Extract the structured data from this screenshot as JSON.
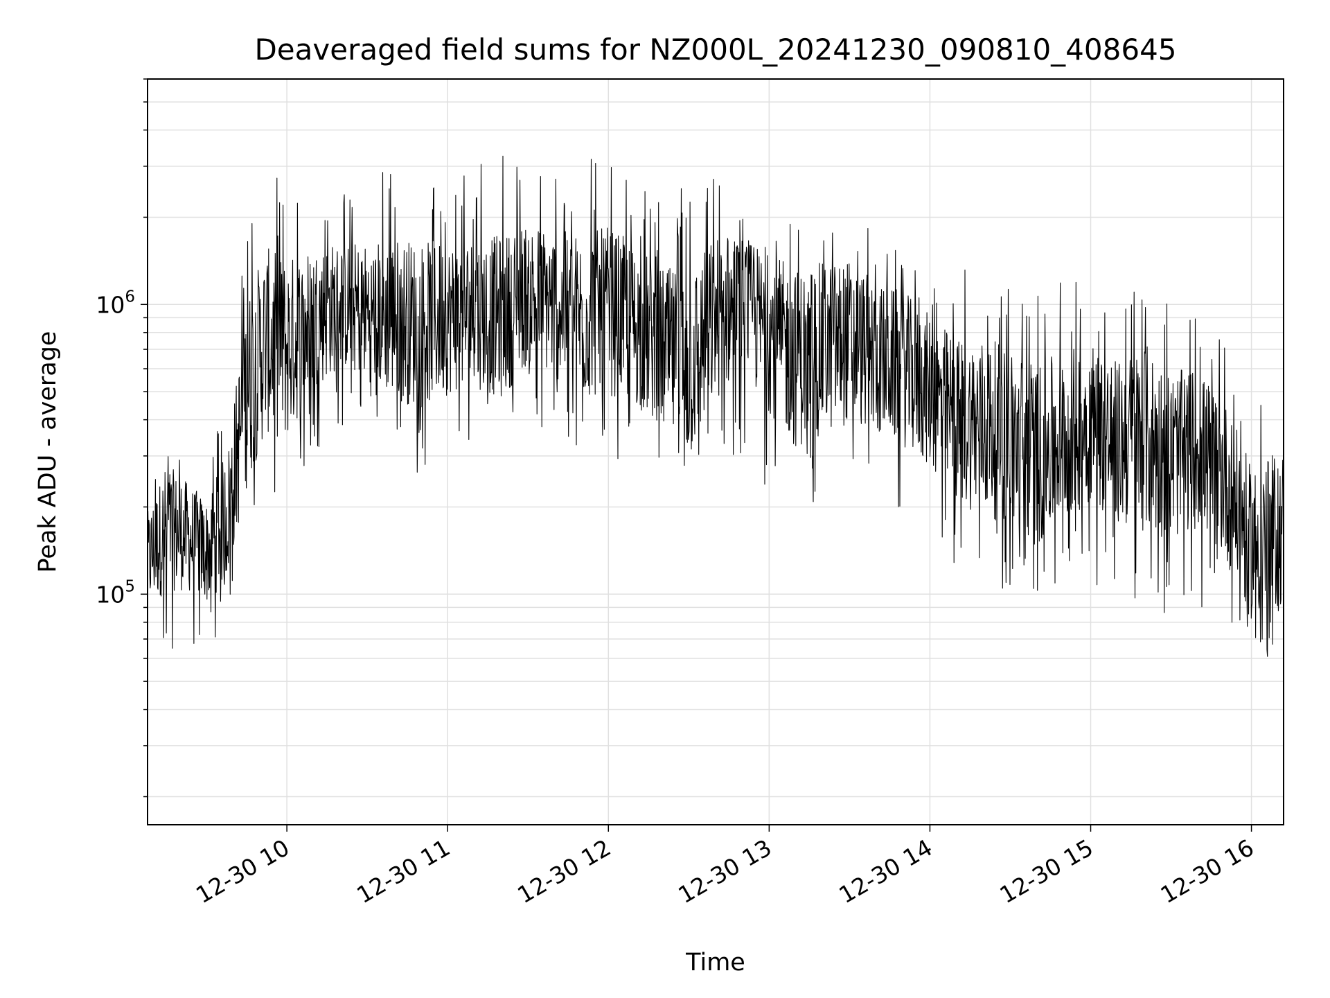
{
  "chart_data": {
    "type": "line",
    "title": "Deaveraged field sums for NZ000L_20241230_090810_408645",
    "xlabel": "Time",
    "ylabel": "Peak ADU - average",
    "x_start": "2024-12-30 09:08",
    "x_end": "2024-12-30 16:12",
    "xlim": [
      "2024-12-30 09:08",
      "2024-12-30 16:12"
    ],
    "xticks": [
      {
        "time": "2024-12-30 10:00",
        "label": "12-30 10"
      },
      {
        "time": "2024-12-30 11:00",
        "label": "12-30 11"
      },
      {
        "time": "2024-12-30 12:00",
        "label": "12-30 12"
      },
      {
        "time": "2024-12-30 13:00",
        "label": "12-30 13"
      },
      {
        "time": "2024-12-30 14:00",
        "label": "12-30 14"
      },
      {
        "time": "2024-12-30 15:00",
        "label": "12-30 15"
      },
      {
        "time": "2024-12-30 16:00",
        "label": "12-30 16"
      }
    ],
    "yscale": "log",
    "ylim": [
      16000,
      6000000
    ],
    "yticks": [
      {
        "value": 100000,
        "base": "10",
        "exp": "5"
      },
      {
        "value": 1000000,
        "base": "10",
        "exp": "6"
      }
    ],
    "grid": true,
    "line_color": "#000000",
    "grid_color": "#e0e0e0",
    "series": [
      {
        "x": [
          "09:08",
          "09:15",
          "09:22",
          "09:30",
          "09:38",
          "09:45",
          "09:52",
          "10:00",
          "10:10",
          "10:20",
          "10:30",
          "10:40",
          "10:50",
          "11:00",
          "11:10",
          "11:20",
          "11:30",
          "11:40",
          "11:50",
          "12:00",
          "12:10",
          "12:20",
          "12:30",
          "12:40",
          "12:50",
          "13:00",
          "13:10",
          "13:20",
          "13:30",
          "13:40",
          "13:50",
          "14:00",
          "14:10",
          "14:20",
          "14:30",
          "14:40",
          "14:50",
          "15:00",
          "15:10",
          "15:20",
          "15:30",
          "15:40",
          "15:50",
          "16:00",
          "16:12"
        ],
        "values": [
          130000,
          170000,
          160000,
          140000,
          190000,
          500000,
          750000,
          700000,
          900000,
          1000000,
          950000,
          900000,
          850000,
          900000,
          950000,
          900000,
          1100000,
          1000000,
          900000,
          950000,
          850000,
          700000,
          600000,
          900000,
          1000000,
          800000,
          650000,
          700000,
          750000,
          650000,
          600000,
          500000,
          400000,
          380000,
          350000,
          300000,
          350000,
          400000,
          330000,
          350000,
          300000,
          320000,
          250000,
          150000,
          170000
        ],
        "upper": [
          250000,
          350000,
          300000,
          250000,
          600000,
          2400000,
          3000000,
          2600000,
          2500000,
          2400000,
          2600000,
          3200000,
          2900000,
          2800000,
          3200000,
          3400000,
          3100000,
          3000000,
          3500000,
          3400000,
          2700000,
          2200000,
          3000000,
          2800000,
          2000000,
          2200000,
          2600000,
          2500000,
          2400000,
          1800000,
          1600000,
          1400000,
          1300000,
          1500000,
          1300000,
          1400000,
          1200000,
          1200000,
          1100000,
          1400000,
          1000000,
          900000,
          800000,
          500000,
          600000
        ],
        "lower": [
          60000,
          55000,
          60000,
          55000,
          90000,
          150000,
          200000,
          180000,
          300000,
          380000,
          350000,
          300000,
          250000,
          300000,
          350000,
          320000,
          380000,
          350000,
          300000,
          300000,
          260000,
          200000,
          180000,
          250000,
          270000,
          220000,
          190000,
          200000,
          220000,
          200000,
          170000,
          150000,
          120000,
          110000,
          100000,
          95000,
          100000,
          110000,
          100000,
          90000,
          85000,
          90000,
          80000,
          55000,
          60000
        ]
      }
    ]
  }
}
